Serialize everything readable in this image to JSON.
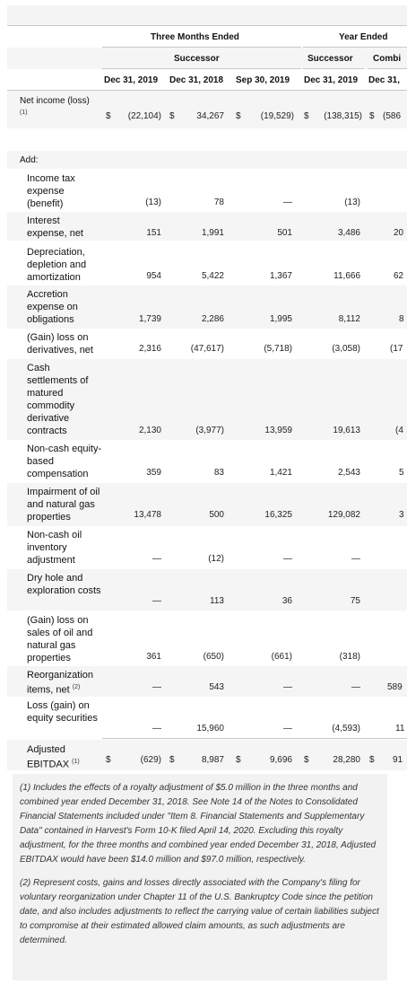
{
  "table": {
    "header": {
      "group_three_months": "Three Months Ended",
      "group_year_ended": "Year Ended",
      "successor_1": "Successor",
      "successor_2": "Successor",
      "combined_partial": "Combi",
      "cols": [
        "Dec 31, 2019",
        "Dec 31, 2018",
        "Sep 30, 2019",
        "Dec 31, 2019",
        "Dec 31,"
      ]
    },
    "net_income": {
      "label": "Net income (loss)",
      "note": "(1)",
      "dollar": "$",
      "values": [
        "(22,104)",
        "34,267",
        "(19,529)",
        "(138,315)",
        "(586"
      ]
    },
    "add_label": "Add:",
    "rows": [
      {
        "label": "Income tax expense (benefit)",
        "note": "",
        "values": [
          "(13)",
          "78",
          "—",
          "(13)",
          ""
        ]
      },
      {
        "label": "Interest expense, net",
        "note": "",
        "values": [
          "151",
          "1,991",
          "501",
          "3,486",
          "20"
        ]
      },
      {
        "label": "Depreciation, depletion and amortization",
        "note": "",
        "values": [
          "954",
          "5,422",
          "1,367",
          "11,666",
          "62"
        ]
      },
      {
        "label": "Accretion expense on obligations",
        "note": "",
        "values": [
          "1,739",
          "2,286",
          "1,995",
          "8,112",
          "8"
        ]
      },
      {
        "label": "(Gain) loss on derivatives, net",
        "note": "",
        "values": [
          "2,316",
          "(47,617)",
          "(5,718)",
          "(3,058)",
          "(17"
        ]
      },
      {
        "label": "Cash settlements of matured commodity derivative contracts",
        "note": "",
        "values": [
          "2,130",
          "(3,977)",
          "13,959",
          "19,613",
          "(4"
        ]
      },
      {
        "label": "Non-cash equity-based compensation",
        "note": "",
        "values": [
          "359",
          "83",
          "1,421",
          "2,543",
          "5"
        ]
      },
      {
        "label": "Impairment of oil and natural gas properties",
        "note": "",
        "values": [
          "13,478",
          "500",
          "16,325",
          "129,082",
          "3"
        ]
      },
      {
        "label": "Non-cash oil inventory adjustment",
        "note": "",
        "values": [
          "—",
          "(12)",
          "—",
          "—",
          ""
        ]
      },
      {
        "label": "Dry hole and exploration costs",
        "note": "",
        "values": [
          "—",
          "113",
          "36",
          "75",
          ""
        ]
      },
      {
        "label": "(Gain) loss on sales of oil and natural gas properties",
        "note": "",
        "values": [
          "361",
          "(650)",
          "(661)",
          "(318)",
          ""
        ]
      },
      {
        "label": "Reorganization items, net",
        "note": "(2)",
        "values": [
          "—",
          "543",
          "—",
          "—",
          "589"
        ]
      },
      {
        "label": "Loss (gain) on equity securities",
        "note": "",
        "values": [
          "—",
          "15,960",
          "—",
          "(4,593)",
          "11"
        ]
      }
    ],
    "adjusted": {
      "label": "Adjusted EBITDAX",
      "note": "(1)",
      "dollar": "$",
      "values": [
        "(629)",
        "8,987",
        "9,696",
        "28,280",
        "91"
      ]
    }
  },
  "footnotes": [
    "(1) Includes the effects of a royalty adjustment of $5.0 million in the three months and combined year ended December 31, 2018. See Note 14 of the Notes to Consolidated Financial Statements included under \"Item 8. Financial Statements and Supplementary Data\" contained in Harvest's Form 10-K filed April 14, 2020. Excluding this royalty adjustment, for the three months and combined year ended December 31, 2018, Adjusted EBITDAX would have been $14.0 million and $97.0 million, respectively.",
    "(2) Represent costs, gains and losses directly associated with the Company's filing for voluntary reorganization under Chapter 11 of the U.S. Bankruptcy Code since the petition date, and also includes adjustments to reflect the carrying value of certain liabilities subject to compromise at their estimated allowed claim amounts, as such adjustments are determined."
  ]
}
